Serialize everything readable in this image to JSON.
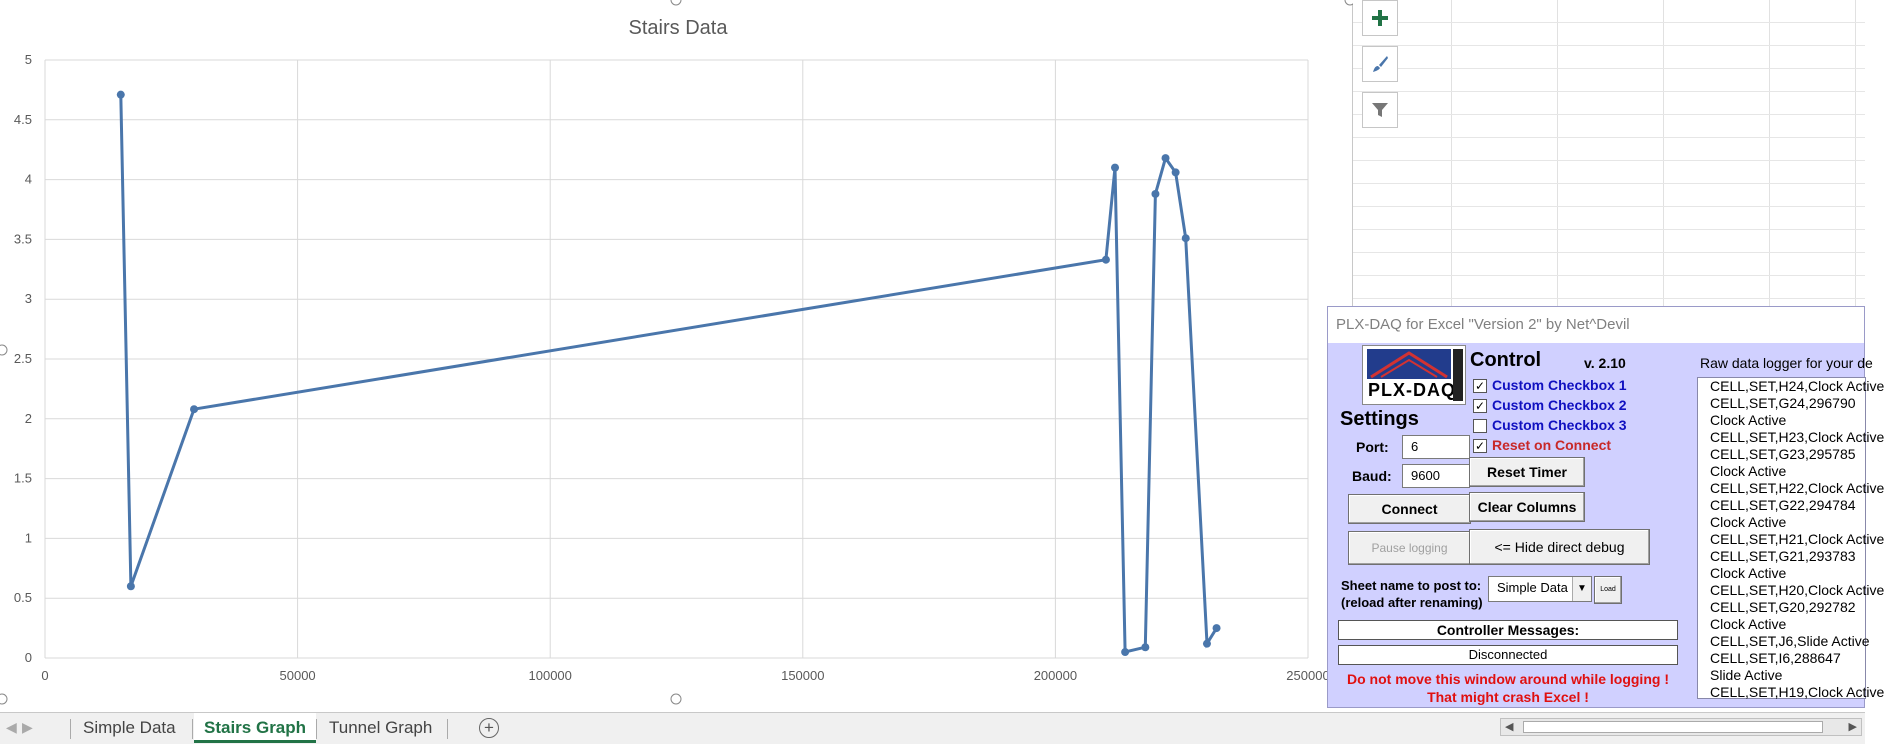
{
  "chart_data": {
    "type": "scatter",
    "title": "Stairs Data",
    "xlim": [
      0,
      250000
    ],
    "ylim": [
      0,
      5
    ],
    "x_ticks": [
      0,
      50000,
      100000,
      150000,
      200000,
      250000
    ],
    "y_ticks": [
      0,
      0.5,
      1,
      1.5,
      2,
      2.5,
      3,
      3.5,
      4,
      4.5,
      5
    ],
    "grid": true,
    "series": [
      {
        "color": "#4a76ab",
        "points": [
          {
            "x": 15000,
            "y": 4.71
          },
          {
            "x": 17000,
            "y": 0.6
          },
          {
            "x": 29500,
            "y": 2.08
          },
          {
            "x": 210000,
            "y": 3.33
          },
          {
            "x": 211800,
            "y": 4.1
          },
          {
            "x": 213800,
            "y": 0.05
          },
          {
            "x": 217800,
            "y": 0.09
          },
          {
            "x": 219800,
            "y": 3.88
          },
          {
            "x": 221800,
            "y": 4.18
          },
          {
            "x": 223800,
            "y": 4.06
          },
          {
            "x": 225800,
            "y": 3.51
          },
          {
            "x": 230000,
            "y": 0.12
          },
          {
            "x": 231900,
            "y": 0.25
          }
        ]
      }
    ]
  },
  "chart_tools": [
    {
      "name": "chart-elements-button",
      "icon": "plus-icon"
    },
    {
      "name": "chart-styles-button",
      "icon": "paintbrush-icon"
    },
    {
      "name": "chart-filters-button",
      "icon": "filter-icon"
    }
  ],
  "sheet_tabs": [
    {
      "label": "Simple Data",
      "active": false
    },
    {
      "label": "Stairs Graph",
      "active": true
    },
    {
      "label": "Tunnel Graph",
      "active": false
    }
  ],
  "plx": {
    "title": "PLX-DAQ for Excel \"Version 2\" by Net^Devil",
    "logo_text": "PLX-DAQ",
    "settings_heading": "Settings",
    "port_label": "Port:",
    "port_value": "6",
    "baud_label": "Baud:",
    "baud_value": "9600",
    "connect_label": "Connect",
    "pause_label": "Pause logging",
    "sheet_label_1": "Sheet name to post to:",
    "sheet_label_2": "(reload after renaming)",
    "sheet_selected": "Simple Data",
    "load_label": "Load",
    "control_heading": "Control",
    "version": "v. 2.10",
    "checkboxes": [
      {
        "label": "Custom Checkbox 1",
        "checked": true
      },
      {
        "label": "Custom Checkbox 2",
        "checked": true
      },
      {
        "label": "Custom Checkbox 3",
        "checked": false
      },
      {
        "label": "Reset on Connect",
        "checked": true
      }
    ],
    "reset_timer_label": "Reset Timer",
    "clear_columns_label": "Clear Columns",
    "hide_debug_label": "<= Hide direct debug",
    "messages_label": "Controller Messages:",
    "status": "Disconnected",
    "warning_1": "Do not move this window around while logging !",
    "warning_2": "That might crash Excel !",
    "logger_title": "Raw data logger for your de",
    "log_lines": [
      "CELL,SET,H24,Clock Active",
      "CELL,SET,G24,296790",
      "Clock Active",
      "CELL,SET,H23,Clock Active",
      "CELL,SET,G23,295785",
      "Clock Active",
      "CELL,SET,H22,Clock Active",
      "CELL,SET,G22,294784",
      "Clock Active",
      "CELL,SET,H21,Clock Active",
      "CELL,SET,G21,293783",
      "Clock Active",
      "CELL,SET,H20,Clock Active",
      "CELL,SET,G20,292782",
      "Clock Active",
      "CELL,SET,J6,Slide Active",
      "CELL,SET,I6,288647",
      "Slide Active",
      "CELL,SET,H19,Clock Active"
    ]
  }
}
